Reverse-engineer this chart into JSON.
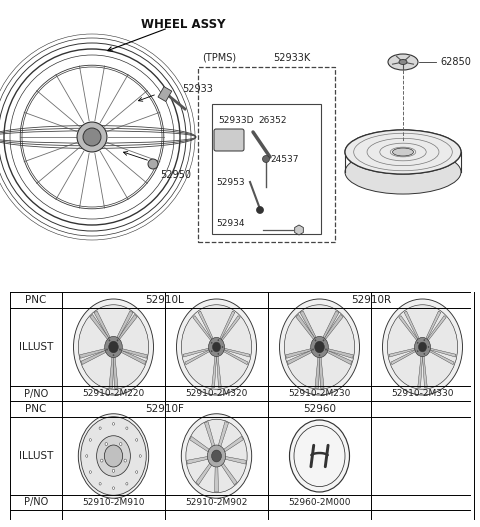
{
  "bg_color": "#ffffff",
  "title": "WHEEL ASSY",
  "table": {
    "row1_pnc_left": "52910L",
    "row1_pnc_right": "52910R",
    "row1_pno": [
      "52910-2M220",
      "52910-2M320",
      "52910-2M230",
      "52910-2M330"
    ],
    "row2_pnc_left": "52910F",
    "row2_pnc_right": "52960",
    "row2_pno": [
      "52910-2M910",
      "52910-2M902",
      "52960-2M000"
    ]
  }
}
